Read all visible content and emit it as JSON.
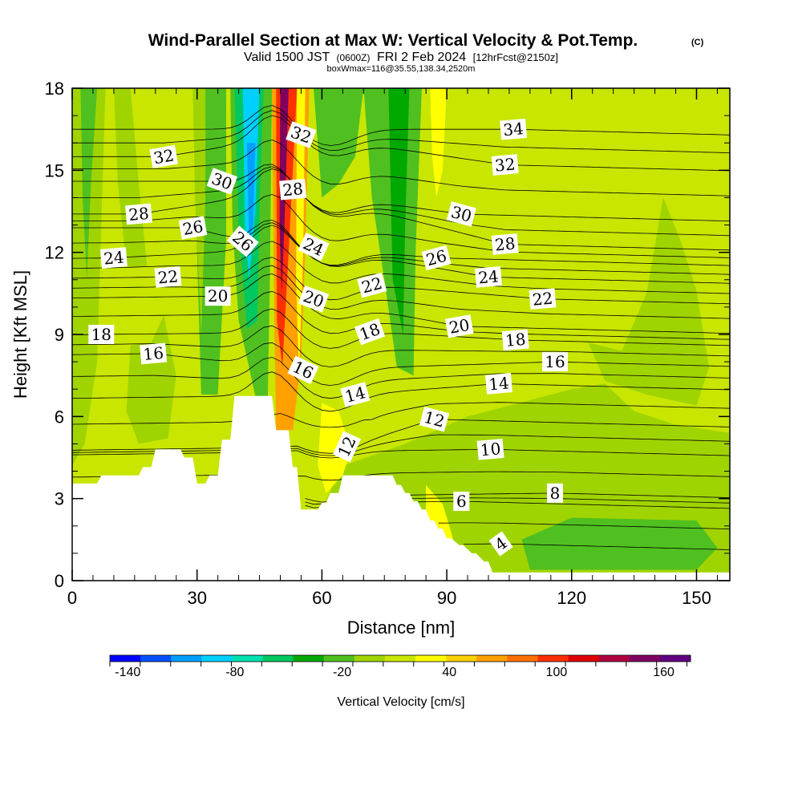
{
  "title": {
    "main": "Wind-Parallel Section at Max W: Vertical Velocity & Pot.Temp.",
    "copyright": "(C)",
    "valid_prefix": "Valid 1500 JST",
    "valid_utc": "(0600Z)",
    "valid_date": "FRI 2 Feb 2024",
    "valid_fcst": "[12hrFcst@2150z]",
    "box": "boxWmax=116@35.55,138.34,2520m"
  },
  "colors": {
    "fill_background": "#c8e600",
    "terrain": "#ffffff",
    "contour_line": "#000000",
    "colorbar_steps": [
      "#0000ff",
      "#0050ff",
      "#00a0ff",
      "#00d0ff",
      "#00e0b0",
      "#00c860",
      "#00a800",
      "#50c020",
      "#a0d400",
      "#c8e600",
      "#ffff00",
      "#ffd000",
      "#ffa000",
      "#ff7000",
      "#ff3000",
      "#e00000",
      "#b00040",
      "#800060",
      "#600080"
    ]
  },
  "chart_data": {
    "type": "heatmap",
    "title": "Wind-Parallel Section at Max W: Vertical Velocity & Pot.Temp.",
    "xlabel": "Distance [nm]",
    "ylabel": "Height [Kft MSL]",
    "xlim": [
      0,
      158
    ],
    "ylim": [
      0,
      18
    ],
    "x_ticks": [
      0,
      30,
      60,
      90,
      120,
      150
    ],
    "y_ticks": [
      0,
      3,
      6,
      9,
      12,
      15,
      18
    ],
    "grid": false,
    "colorbar": {
      "label": "Vertical Velocity [cm/s]",
      "tick_labels": [
        "-140",
        "-80",
        "-20",
        "40",
        "100",
        "160"
      ],
      "tick_values": [
        -140,
        -80,
        -20,
        40,
        100,
        160
      ],
      "range": [
        -150,
        175
      ],
      "step": 17,
      "placement": "bottom"
    },
    "terrain_profile": [
      [
        0,
        3.55
      ],
      [
        1,
        3.55
      ],
      [
        6,
        3.55
      ],
      [
        7,
        3.85
      ],
      [
        16,
        3.85
      ],
      [
        17,
        4.15
      ],
      [
        19,
        4.15
      ],
      [
        20,
        4.8
      ],
      [
        26,
        4.8
      ],
      [
        27,
        4.5
      ],
      [
        29,
        4.5
      ],
      [
        30,
        3.55
      ],
      [
        32,
        3.55
      ],
      [
        33,
        3.85
      ],
      [
        35,
        3.85
      ],
      [
        36,
        5.15
      ],
      [
        38,
        5.15
      ],
      [
        39,
        6.75
      ],
      [
        48,
        6.75
      ],
      [
        49,
        5.5
      ],
      [
        52,
        5.5
      ],
      [
        53,
        4.15
      ],
      [
        54,
        4.15
      ],
      [
        55,
        2.6
      ],
      [
        59,
        2.6
      ],
      [
        60,
        2.85
      ],
      [
        61,
        2.85
      ],
      [
        62,
        3.2
      ],
      [
        64,
        3.2
      ],
      [
        65,
        3.85
      ],
      [
        77,
        3.85
      ],
      [
        78,
        3.5
      ],
      [
        79,
        3.5
      ],
      [
        80,
        3.2
      ],
      [
        81,
        3.2
      ],
      [
        82,
        2.9
      ],
      [
        83,
        2.9
      ],
      [
        84,
        2.6
      ],
      [
        85,
        2.6
      ],
      [
        86,
        2.2
      ],
      [
        87,
        2.2
      ],
      [
        88,
        1.9
      ],
      [
        89,
        1.9
      ],
      [
        90,
        1.55
      ],
      [
        91,
        1.55
      ],
      [
        93,
        1.3
      ],
      [
        94,
        1.3
      ],
      [
        96,
        1.0
      ],
      [
        97,
        1.0
      ],
      [
        99,
        0.7
      ],
      [
        100,
        0.7
      ],
      [
        101,
        0.3
      ],
      [
        158,
        0.3
      ]
    ],
    "velocity_regions": [
      {
        "w": -5,
        "pts": [
          [
            58,
            2
          ],
          [
            100,
            0.3
          ],
          [
            158,
            0.3
          ],
          [
            158,
            5.4
          ],
          [
            145,
            5.7
          ],
          [
            135,
            6.2
          ],
          [
            128,
            7.2
          ],
          [
            120,
            7.0
          ],
          [
            110,
            6.6
          ],
          [
            95,
            6.0
          ],
          [
            80,
            5.0
          ],
          [
            65,
            4.2
          ]
        ]
      },
      {
        "w": -20,
        "pts": [
          [
            110,
            0.4
          ],
          [
            150,
            0.4
          ],
          [
            155,
            1.2
          ],
          [
            150,
            2.2
          ],
          [
            120,
            2.3
          ],
          [
            108,
            1.5
          ]
        ]
      },
      {
        "w": -10,
        "pts": [
          [
            124,
            8.7
          ],
          [
            132,
            8.4
          ],
          [
            138,
            10.5
          ],
          [
            142,
            14.0
          ],
          [
            146,
            12.5
          ],
          [
            150,
            10.6
          ],
          [
            153,
            7.8
          ],
          [
            150,
            6.4
          ],
          [
            138,
            6.8
          ],
          [
            128,
            7.3
          ]
        ]
      },
      {
        "w": -10,
        "pts": [
          [
            0,
            18
          ],
          [
            8,
            18
          ],
          [
            7,
            13.0
          ],
          [
            6,
            8.0
          ],
          [
            3,
            5.0
          ],
          [
            0,
            4.2
          ]
        ]
      },
      {
        "w": -20,
        "pts": [
          [
            2,
            18
          ],
          [
            6,
            18
          ],
          [
            4.5,
            14.5
          ],
          [
            3.5,
            11
          ],
          [
            2.5,
            14
          ]
        ]
      },
      {
        "w": -5,
        "pts": [
          [
            10,
            18
          ],
          [
            14,
            18
          ],
          [
            16,
            14.5
          ],
          [
            18,
            11.5
          ],
          [
            13,
            11.5
          ],
          [
            11,
            14.5
          ]
        ]
      },
      {
        "w": -10,
        "pts": [
          [
            14,
            8.6
          ],
          [
            19,
            8.7
          ],
          [
            22,
            9.7
          ],
          [
            25,
            7.5
          ],
          [
            23,
            5.2
          ],
          [
            16,
            5.0
          ],
          [
            13,
            6.2
          ]
        ]
      },
      {
        "w": -15,
        "pts": [
          [
            29,
            18
          ],
          [
            37,
            18
          ],
          [
            37,
            12.5
          ],
          [
            35,
            6.8
          ],
          [
            31,
            6.8
          ],
          [
            30,
            12
          ]
        ]
      },
      {
        "w": -5,
        "pts": [
          [
            29,
            18
          ],
          [
            32,
            18
          ],
          [
            32,
            14
          ],
          [
            31,
            9
          ],
          [
            29.5,
            14
          ]
        ]
      },
      {
        "w": -30,
        "pts": [
          [
            38,
            18
          ],
          [
            48,
            18
          ],
          [
            47.5,
            11
          ],
          [
            47,
            6.75
          ],
          [
            44,
            6.75
          ],
          [
            40,
            9.5
          ],
          [
            38.5,
            13
          ]
        ]
      },
      {
        "w": -60,
        "pts": [
          [
            39,
            18
          ],
          [
            46,
            18
          ],
          [
            45,
            13.5
          ],
          [
            44.5,
            9.5
          ],
          [
            42,
            9.2
          ],
          [
            40,
            13
          ]
        ]
      },
      {
        "w": -90,
        "pts": [
          [
            41,
            18
          ],
          [
            45,
            18
          ],
          [
            44,
            13.5
          ],
          [
            42.5,
            11
          ],
          [
            41.5,
            13
          ]
        ]
      },
      {
        "w": -110,
        "pts": [
          [
            42,
            16
          ],
          [
            44,
            16
          ],
          [
            43.5,
            13
          ],
          [
            42.5,
            12.5
          ]
        ]
      },
      {
        "w": 60,
        "pts": [
          [
            48,
            18
          ],
          [
            57,
            18
          ],
          [
            56,
            12
          ],
          [
            55,
            8
          ],
          [
            53,
            5.5
          ],
          [
            49,
            5.5
          ],
          [
            48.5,
            10
          ]
        ]
      },
      {
        "w": 100,
        "pts": [
          [
            49,
            18
          ],
          [
            54,
            18
          ],
          [
            52,
            12
          ],
          [
            50.5,
            7.8
          ],
          [
            49.2,
            9.5
          ]
        ]
      },
      {
        "w": 150,
        "pts": [
          [
            50,
            18
          ],
          [
            52,
            18
          ],
          [
            51,
            13
          ],
          [
            50.3,
            10.5
          ],
          [
            49.8,
            13
          ]
        ]
      },
      {
        "w": 30,
        "pts": [
          [
            54,
            18
          ],
          [
            56,
            18
          ],
          [
            55.5,
            12
          ],
          [
            54.5,
            7.5
          ],
          [
            53.8,
            11
          ]
        ]
      },
      {
        "w": -15,
        "pts": [
          [
            58,
            18
          ],
          [
            70,
            18
          ],
          [
            68,
            15.5
          ],
          [
            64,
            14.5
          ],
          [
            60,
            14.0
          ]
        ]
      },
      {
        "w": 30,
        "pts": [
          [
            60,
            6.5
          ],
          [
            64,
            6.2
          ],
          [
            67,
            4.8
          ],
          [
            65,
            3.85
          ],
          [
            61,
            3.2
          ],
          [
            59,
            4.2
          ]
        ]
      },
      {
        "w": -15,
        "pts": [
          [
            70,
            18
          ],
          [
            84,
            18
          ],
          [
            82.5,
            12
          ],
          [
            82,
            7.5
          ],
          [
            78,
            7.8
          ],
          [
            75,
            11
          ],
          [
            72,
            14
          ]
        ]
      },
      {
        "w": -35,
        "pts": [
          [
            76,
            18
          ],
          [
            81,
            18
          ],
          [
            80,
            13
          ],
          [
            79.5,
            9
          ],
          [
            77,
            11
          ]
        ]
      },
      {
        "w": 30,
        "pts": [
          [
            86,
            18
          ],
          [
            90,
            18
          ],
          [
            89,
            15
          ],
          [
            87.5,
            14
          ],
          [
            86.5,
            15.5
          ]
        ]
      },
      {
        "w": 10,
        "pts": [
          [
            90,
            18
          ],
          [
            94,
            18
          ],
          [
            93,
            14
          ],
          [
            91,
            15.5
          ]
        ]
      },
      {
        "w": 30,
        "pts": [
          [
            85,
            3.5
          ],
          [
            89,
            2.8
          ],
          [
            91,
            1.8
          ],
          [
            92,
            1.2
          ],
          [
            88,
            1.4
          ],
          [
            85,
            2.2
          ]
        ]
      }
    ],
    "isentropes": [
      {
        "value": 4,
        "label": true
      },
      {
        "value": 6,
        "label": true
      },
      {
        "value": 8,
        "label": true
      },
      {
        "value": 10,
        "label": true
      },
      {
        "value": 12,
        "label": true
      },
      {
        "value": 14,
        "label": true
      },
      {
        "value": 16,
        "label": true
      },
      {
        "value": 18,
        "label": true
      },
      {
        "value": 20,
        "label": true
      },
      {
        "value": 22,
        "label": true
      },
      {
        "value": 24,
        "label": true
      },
      {
        "value": 26,
        "label": true
      },
      {
        "value": 28,
        "label": true
      },
      {
        "value": 30,
        "label": true
      },
      {
        "value": 32,
        "label": true
      },
      {
        "value": 34,
        "label": true
      }
    ],
    "contour_labels": [
      {
        "text": "32",
        "x": 22,
        "y": 15.5,
        "angle": -10
      },
      {
        "text": "34",
        "x": 106,
        "y": 16.5,
        "angle": -5
      },
      {
        "text": "32",
        "x": 55,
        "y": 16.3,
        "angle": 20
      },
      {
        "text": "32",
        "x": 104,
        "y": 15.2,
        "angle": -5
      },
      {
        "text": "30",
        "x": 36,
        "y": 14.6,
        "angle": 20
      },
      {
        "text": "28",
        "x": 53,
        "y": 14.3,
        "angle": -5
      },
      {
        "text": "30",
        "x": 93.5,
        "y": 13.4,
        "angle": 15
      },
      {
        "text": "28",
        "x": 16,
        "y": 13.4,
        "angle": -5
      },
      {
        "text": "26",
        "x": 29,
        "y": 12.9,
        "angle": -10
      },
      {
        "text": "28",
        "x": 104,
        "y": 12.3,
        "angle": -5
      },
      {
        "text": "26",
        "x": 41,
        "y": 12.4,
        "angle": 40
      },
      {
        "text": "24",
        "x": 58,
        "y": 12.2,
        "angle": 25
      },
      {
        "text": "24",
        "x": 10,
        "y": 11.8,
        "angle": -5
      },
      {
        "text": "26",
        "x": 87.5,
        "y": 11.8,
        "angle": -15
      },
      {
        "text": "22",
        "x": 23,
        "y": 11.1,
        "angle": -5
      },
      {
        "text": "24",
        "x": 100,
        "y": 11.1,
        "angle": -5
      },
      {
        "text": "20",
        "x": 35,
        "y": 10.4,
        "angle": 0
      },
      {
        "text": "20",
        "x": 58,
        "y": 10.3,
        "angle": 20
      },
      {
        "text": "22",
        "x": 72,
        "y": 10.8,
        "angle": -15
      },
      {
        "text": "22",
        "x": 113,
        "y": 10.3,
        "angle": -5
      },
      {
        "text": "18",
        "x": 7,
        "y": 9.0,
        "angle": 0
      },
      {
        "text": "18",
        "x": 71.5,
        "y": 9.1,
        "angle": -20
      },
      {
        "text": "20",
        "x": 93,
        "y": 9.3,
        "angle": -10
      },
      {
        "text": "18",
        "x": 106.5,
        "y": 8.8,
        "angle": -5
      },
      {
        "text": "16",
        "x": 19.5,
        "y": 8.3,
        "angle": -5
      },
      {
        "text": "16",
        "x": 116,
        "y": 8.0,
        "angle": 0
      },
      {
        "text": "16",
        "x": 55.5,
        "y": 7.7,
        "angle": 25
      },
      {
        "text": "14",
        "x": 102.5,
        "y": 7.2,
        "angle": -5
      },
      {
        "text": "14",
        "x": 68,
        "y": 6.8,
        "angle": -15
      },
      {
        "text": "12",
        "x": 87,
        "y": 5.9,
        "angle": 15
      },
      {
        "text": "12",
        "x": 66,
        "y": 4.9,
        "angle": -65
      },
      {
        "text": "10",
        "x": 100.5,
        "y": 4.8,
        "angle": -5
      },
      {
        "text": "8",
        "x": 116,
        "y": 3.2,
        "angle": 0
      },
      {
        "text": "6",
        "x": 93.5,
        "y": 2.9,
        "angle": 0
      },
      {
        "text": "4",
        "x": 103,
        "y": 1.35,
        "angle": -35
      }
    ]
  }
}
